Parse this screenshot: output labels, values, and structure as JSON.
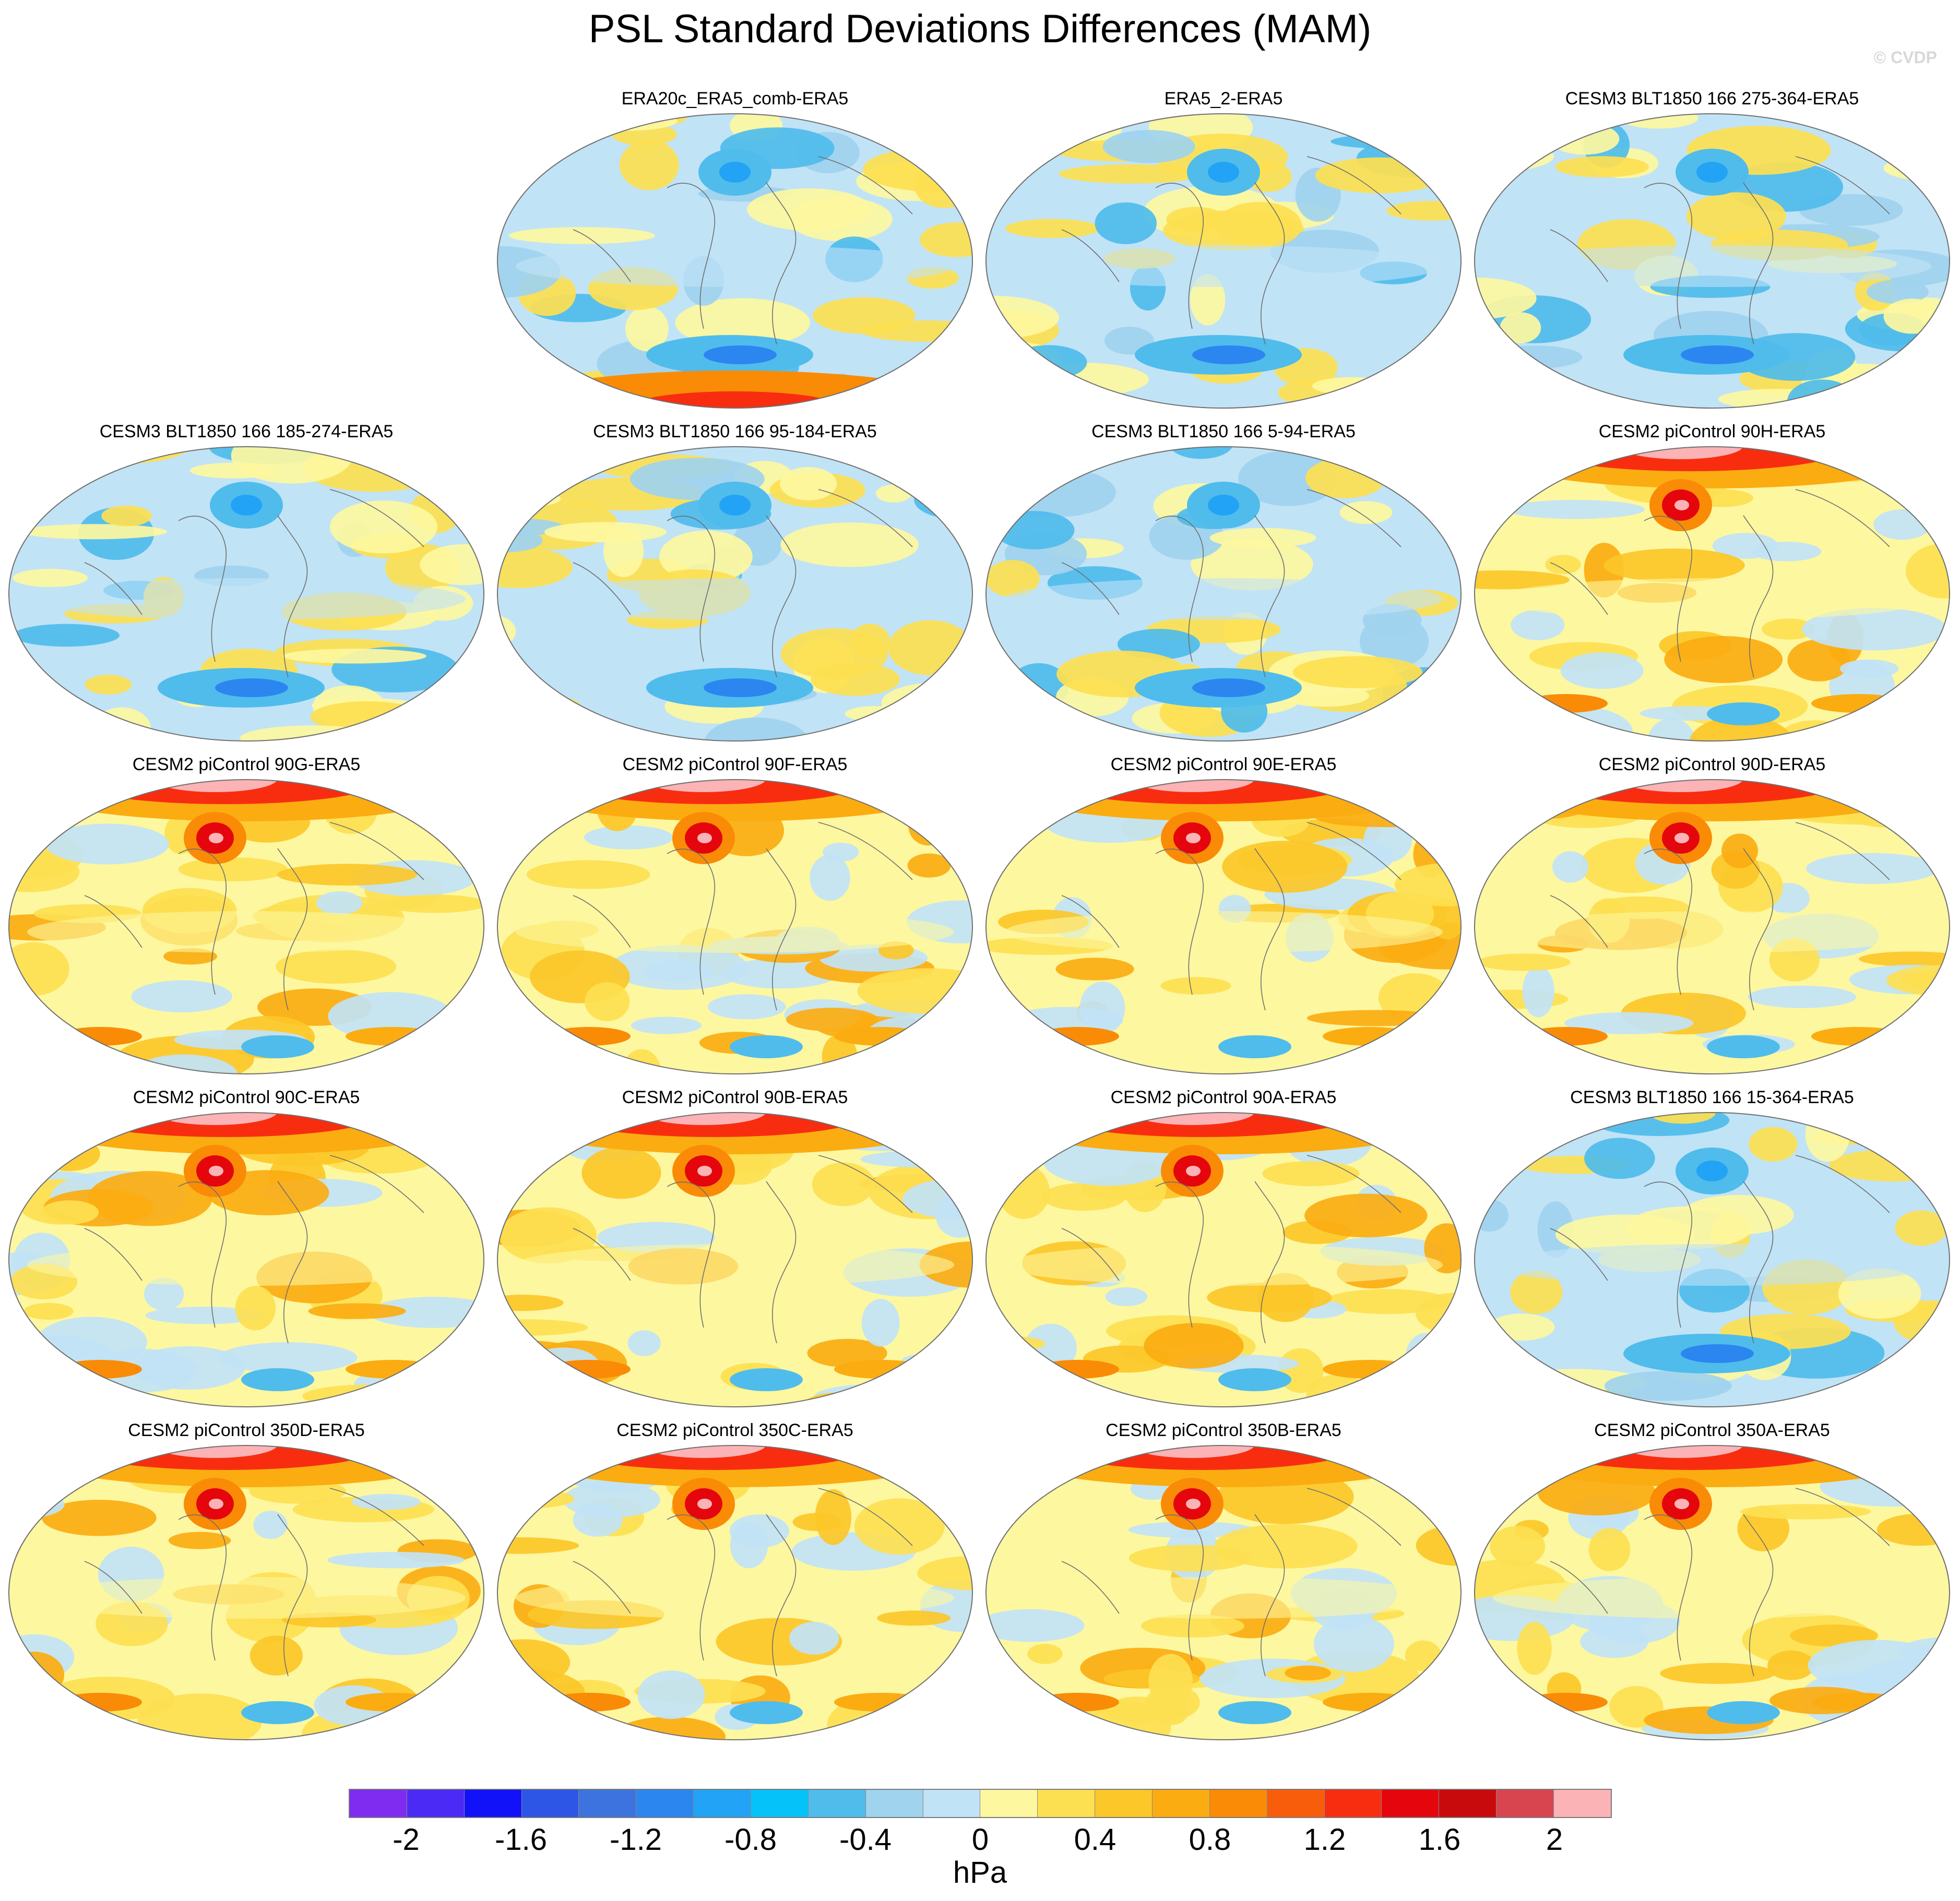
{
  "figure": {
    "title": "PSL Standard Deviations Differences (MAM)",
    "copyright": "© CVDP",
    "units": "hPa"
  },
  "colorbar": {
    "colors": [
      "#7f2cf0",
      "#4b2af5",
      "#1212f8",
      "#2d55e6",
      "#3c73de",
      "#2b86f0",
      "#22a3f5",
      "#05c3f9",
      "#4fbcec",
      "#9fd3ee",
      "#c1e3f6",
      "#fdf7a0",
      "#fde051",
      "#fcc728",
      "#fbac11",
      "#fa8b07",
      "#f85d0c",
      "#f82d10",
      "#e4060c",
      "#c80a0c",
      "#d8454e",
      "#fbb3b6"
    ],
    "ticks": [
      "-2",
      "-1.6",
      "-1.2",
      "-0.8",
      "-0.4",
      "0",
      "0.4",
      "0.8",
      "1.2",
      "1.6",
      "2"
    ]
  },
  "panels": [
    {
      "title": "ERA20c_ERA5_comb-ERA5",
      "type": "mixed"
    },
    {
      "title": "ERA5_2-ERA5",
      "type": "mixed"
    },
    {
      "title": "CESM3 BLT1850 166 275-364-ERA5",
      "type": "mixed"
    },
    {
      "title": "CESM3 BLT1850 166 185-274-ERA5",
      "type": "mixed"
    },
    {
      "title": "CESM3 BLT1850 166 95-184-ERA5",
      "type": "mixed"
    },
    {
      "title": "CESM3 BLT1850 166 5-94-ERA5",
      "type": "mixed"
    },
    {
      "title": "CESM2 piControl 90H-ERA5",
      "type": "warm"
    },
    {
      "title": "CESM2 piControl 90G-ERA5",
      "type": "warm"
    },
    {
      "title": "CESM2 piControl 90F-ERA5",
      "type": "warm"
    },
    {
      "title": "CESM2 piControl 90E-ERA5",
      "type": "warm"
    },
    {
      "title": "CESM2 piControl 90D-ERA5",
      "type": "warm"
    },
    {
      "title": "CESM2 piControl 90C-ERA5",
      "type": "warm"
    },
    {
      "title": "CESM2 piControl 90B-ERA5",
      "type": "warm"
    },
    {
      "title": "CESM2 piControl 90A-ERA5",
      "type": "warm"
    },
    {
      "title": "CESM3 BLT1850 166 15-364-ERA5",
      "type": "mixed"
    },
    {
      "title": "CESM2 piControl 350D-ERA5",
      "type": "warm"
    },
    {
      "title": "CESM2 piControl 350C-ERA5",
      "type": "warm"
    },
    {
      "title": "CESM2 piControl 350B-ERA5",
      "type": "warm"
    },
    {
      "title": "CESM2 piControl 350A-ERA5",
      "type": "warm"
    }
  ]
}
